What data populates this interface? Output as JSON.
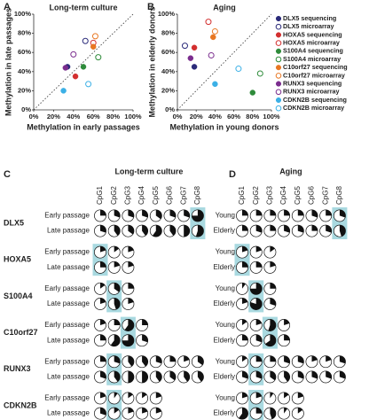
{
  "chart_data": [
    {
      "type": "scatter",
      "panel": "A",
      "title": "Long-term culture",
      "x_label": "Methylation in early passages",
      "y_label": "Methylation in late passages",
      "xlim": [
        0,
        100
      ],
      "ylim": [
        0,
        100
      ],
      "xticks": [
        {
          "value": 0,
          "label": "0%"
        },
        {
          "value": 20,
          "label": "20%"
        },
        {
          "value": 40,
          "label": "40%"
        },
        {
          "value": 60,
          "label": "60%"
        },
        {
          "value": 80,
          "label": "80%"
        },
        {
          "value": 100,
          "label": "100%"
        }
      ],
      "yticks": [
        {
          "value": 0,
          "label": "0%"
        },
        {
          "value": 20,
          "label": "20%"
        },
        {
          "value": 40,
          "label": "40%"
        },
        {
          "value": 60,
          "label": "60%"
        },
        {
          "value": 80,
          "label": "80%"
        },
        {
          "value": 100,
          "label": "100%"
        }
      ],
      "series": [
        {
          "color": "#2b2b7a",
          "marker": "filled",
          "x": [
            34
          ],
          "values": [
            45
          ]
        },
        {
          "color": "#2b2b7a",
          "marker": "open",
          "x": [
            52
          ],
          "values": [
            72
          ]
        },
        {
          "color": "#d32f2f",
          "marker": "filled",
          "x": [
            42
          ],
          "values": [
            35
          ]
        },
        {
          "color": "#d32f2f",
          "marker": "open",
          "x": [
            60
          ],
          "values": [
            70
          ]
        },
        {
          "color": "#2e8b3a",
          "marker": "filled",
          "x": [
            50
          ],
          "values": [
            45
          ]
        },
        {
          "color": "#2e8b3a",
          "marker": "open",
          "x": [
            65
          ],
          "values": [
            55
          ]
        },
        {
          "color": "#e87722",
          "marker": "filled",
          "x": [
            60
          ],
          "values": [
            66
          ]
        },
        {
          "color": "#e87722",
          "marker": "open",
          "x": [
            62
          ],
          "values": [
            77
          ]
        },
        {
          "color": "#7b2d8e",
          "marker": "filled",
          "x": [
            32
          ],
          "values": [
            44
          ]
        },
        {
          "color": "#7b2d8e",
          "marker": "open",
          "x": [
            40
          ],
          "values": [
            58
          ]
        },
        {
          "color": "#3bb0e6",
          "marker": "filled",
          "x": [
            30
          ],
          "values": [
            20
          ]
        },
        {
          "color": "#3bb0e6",
          "marker": "open",
          "x": [
            55
          ],
          "values": [
            27
          ]
        }
      ]
    },
    {
      "type": "scatter",
      "panel": "B",
      "title": "Aging",
      "x_label": "Methylation in young donors",
      "y_label": "Methylation in elderly donors",
      "xlim": [
        0,
        100
      ],
      "ylim": [
        0,
        100
      ],
      "xticks": [
        {
          "value": 0,
          "label": "0%"
        },
        {
          "value": 20,
          "label": "20%"
        },
        {
          "value": 40,
          "label": "40%"
        },
        {
          "value": 60,
          "label": "60%"
        },
        {
          "value": 80,
          "label": "80%"
        },
        {
          "value": 100,
          "label": "100%"
        }
      ],
      "yticks": [
        {
          "value": 0,
          "label": "0%"
        },
        {
          "value": 20,
          "label": "20%"
        },
        {
          "value": 40,
          "label": "40%"
        },
        {
          "value": 60,
          "label": "60%"
        },
        {
          "value": 80,
          "label": "80%"
        },
        {
          "value": 100,
          "label": "100%"
        }
      ],
      "legend": "right",
      "series": [
        {
          "name": "DLX5 sequencing",
          "color": "#2b2b7a",
          "marker": "filled",
          "x": [
            18
          ],
          "values": [
            45
          ]
        },
        {
          "name": "DLX5 microarray",
          "color": "#2b2b7a",
          "marker": "open",
          "x": [
            8
          ],
          "values": [
            67
          ]
        },
        {
          "name": "HOXA5 sequencing",
          "color": "#d32f2f",
          "marker": "filled",
          "x": [
            18
          ],
          "values": [
            65
          ]
        },
        {
          "name": "HOXA5 microarray",
          "color": "#d32f2f",
          "marker": "open",
          "x": [
            33
          ],
          "values": [
            92
          ]
        },
        {
          "name": "S100A4 sequencing",
          "color": "#2e8b3a",
          "marker": "filled",
          "x": [
            80
          ],
          "values": [
            18
          ]
        },
        {
          "name": "S100A4 microarray",
          "color": "#2e8b3a",
          "marker": "open",
          "x": [
            88
          ],
          "values": [
            38
          ]
        },
        {
          "name": "C10orf27 sequencing",
          "color": "#e87722",
          "marker": "filled",
          "x": [
            38
          ],
          "values": [
            76
          ]
        },
        {
          "name": "C10orf27 microarray",
          "color": "#e87722",
          "marker": "open",
          "x": [
            40
          ],
          "values": [
            82
          ]
        },
        {
          "name": "RUNX3 sequencing",
          "color": "#7b2d8e",
          "marker": "filled",
          "x": [
            14
          ],
          "values": [
            54
          ]
        },
        {
          "name": "RUNX3 microarray",
          "color": "#7b2d8e",
          "marker": "open",
          "x": [
            36
          ],
          "values": [
            57
          ]
        },
        {
          "name": "CDKN2B sequencing",
          "color": "#3bb0e6",
          "marker": "filled",
          "x": [
            40
          ],
          "values": [
            27
          ]
        },
        {
          "name": "CDKN2B microarray",
          "color": "#3bb0e6",
          "marker": "open",
          "x": [
            65
          ],
          "values": [
            43
          ]
        }
      ]
    },
    {
      "type": "pie-grid",
      "panel": "C",
      "title": "Long-term culture",
      "columns": [
        "CpG1",
        "CpG2",
        "CpG3",
        "CpG4",
        "CpG5",
        "CpG6",
        "CpG7",
        "CpG8"
      ],
      "groups": [
        {
          "gene": "DLX5",
          "highlight": 7,
          "rows": [
            {
              "label": "Early passage",
              "values": [
                25,
                30,
                30,
                30,
                35,
                30,
                30,
                75
              ]
            },
            {
              "label": "Late passage",
              "values": [
                30,
                40,
                35,
                40,
                60,
                40,
                50,
                55
              ]
            }
          ]
        },
        {
          "gene": "HOXA5",
          "highlight": 0,
          "rows": [
            {
              "label": "Early passage",
              "values": [
                20,
                15,
                20
              ]
            },
            {
              "label": "Late passage",
              "values": [
                25,
                20,
                20
              ]
            }
          ]
        },
        {
          "gene": "S100A4",
          "highlight": 1,
          "rows": [
            {
              "label": "Early passage",
              "values": [
                15,
                35,
                25
              ]
            },
            {
              "label": "Late passage",
              "values": [
                20,
                45,
                20
              ]
            }
          ]
        },
        {
          "gene": "C10orf27",
          "highlight": 2,
          "rows": [
            {
              "label": "Early passage",
              "values": [
                20,
                25,
                60,
                25
              ]
            },
            {
              "label": "Late passage",
              "values": [
                25,
                60,
                75,
                30
              ]
            }
          ]
        },
        {
          "gene": "RUNX3",
          "highlight": 1,
          "rows": [
            {
              "label": "Early passage",
              "values": [
                25,
                30,
                40,
                40,
                30,
                25,
                20,
                35
              ]
            },
            {
              "label": "Late passage",
              "values": [
                30,
                40,
                50,
                50,
                40,
                35,
                40,
                40
              ]
            }
          ]
        },
        {
          "gene": "CDKN2B",
          "highlight": 1,
          "rows": [
            {
              "label": "Early passage",
              "values": [
                20,
                10,
                15,
                15,
                20
              ]
            },
            {
              "label": "Late passage",
              "values": [
                30,
                15,
                20,
                20,
                20
              ]
            }
          ]
        }
      ]
    },
    {
      "type": "pie-grid",
      "panel": "D",
      "title": "Aging",
      "columns": [
        "CpG1",
        "CpG2",
        "CpG3",
        "CpG4",
        "CpG5",
        "CpG6",
        "CpG7",
        "CpG8"
      ],
      "groups": [
        {
          "highlight": 7,
          "rows": [
            {
              "label": "Young",
              "values": [
                25,
                25,
                25,
                25,
                25,
                30,
                25,
                30
              ]
            },
            {
              "label": "Elderly",
              "values": [
                25,
                30,
                25,
                30,
                30,
                25,
                30,
                45
              ]
            }
          ]
        },
        {
          "highlight": 0,
          "rows": [
            {
              "label": "Young",
              "values": [
                20,
                20,
                15
              ]
            },
            {
              "label": "Elderly",
              "values": [
                25,
                25,
                20
              ]
            }
          ]
        },
        {
          "highlight": 1,
          "rows": [
            {
              "label": "Young",
              "values": [
                10,
                75,
                25
              ]
            },
            {
              "label": "Elderly",
              "values": [
                20,
                80,
                30
              ]
            }
          ]
        },
        {
          "highlight": 2,
          "rows": [
            {
              "label": "Young",
              "values": [
                15,
                20,
                55,
                20
              ]
            },
            {
              "label": "Elderly",
              "values": [
                25,
                30,
                65,
                25
              ]
            }
          ]
        },
        {
          "highlight": 1,
          "rows": [
            {
              "label": "Young",
              "values": [
                15,
                25,
                25,
                30,
                30,
                20,
                20,
                30
              ]
            },
            {
              "label": "Elderly",
              "values": [
                30,
                30,
                35,
                40,
                30,
                30,
                30,
                30
              ]
            }
          ]
        },
        {
          "highlight": 1,
          "rows": [
            {
              "label": "Young",
              "values": [
                20,
                20,
                10,
                15,
                20
              ]
            },
            {
              "label": "Elderly",
              "values": [
                60,
                25,
                45,
                10,
                15
              ]
            }
          ]
        }
      ]
    }
  ]
}
